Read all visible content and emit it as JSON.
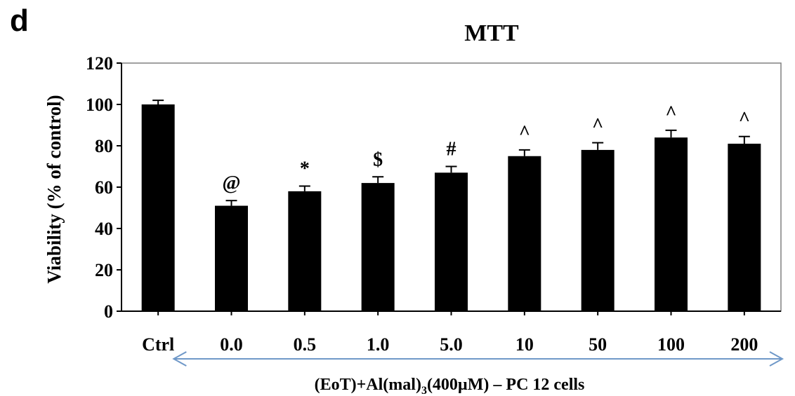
{
  "panel_label": "d",
  "chart_data": {
    "type": "bar",
    "title": "MTT",
    "ylabel": "Viability (% of control)",
    "xlabel": "(EoT)+Al(mal)₃(400µM) – PC 12 cells",
    "xlabel_parts": {
      "before": "(EoT)+Al(mal)",
      "subscript": "3",
      "after": "(400µM) – PC 12 cells"
    },
    "categories": [
      "Ctrl",
      "0.0",
      "0.5",
      "1.0",
      "5.0",
      "10",
      "50",
      "100",
      "200"
    ],
    "values": [
      100,
      51,
      58,
      62,
      67,
      75,
      78,
      84,
      81
    ],
    "errors": [
      2,
      2.5,
      2.5,
      3,
      3,
      3,
      3.5,
      3.5,
      3.5
    ],
    "annotations": [
      "",
      "@",
      "*",
      "$",
      "#",
      "^",
      "^",
      "^",
      "^"
    ],
    "ylim": [
      0,
      120
    ],
    "yticks": [
      "0",
      "20",
      "40",
      "60",
      "80",
      "100",
      "120"
    ],
    "grid": false,
    "legend": "none",
    "bar_color": "#000000",
    "arrow_color": "#6f98c8",
    "arrow_span": "0.0 to 200 (double-headed)"
  }
}
